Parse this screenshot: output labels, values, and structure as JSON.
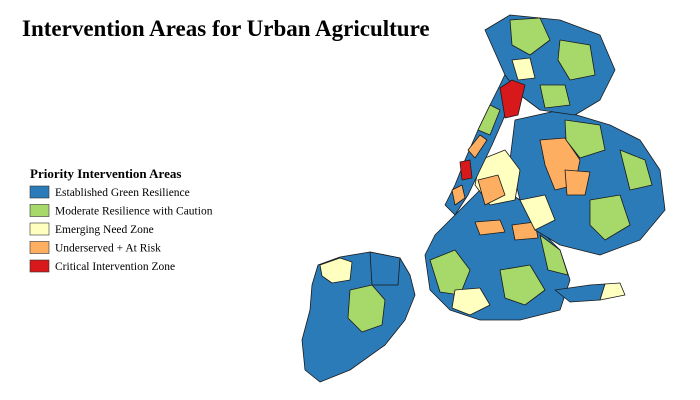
{
  "title": "Intervention Areas  for Urban Agriculture",
  "legend": {
    "title": "Priority Intervention Areas",
    "items": [
      {
        "label": "Established Green Resilience",
        "color": "#2b7bb9"
      },
      {
        "label": "Moderate Resilience with Caution",
        "color": "#a6d96a"
      },
      {
        "label": "Emerging Need Zone",
        "color": "#ffffbf"
      },
      {
        "label": "Underserved + At Risk",
        "color": "#fdae61"
      },
      {
        "label": "Critical Intervention Zone",
        "color": "#d7191c"
      }
    ]
  }
}
